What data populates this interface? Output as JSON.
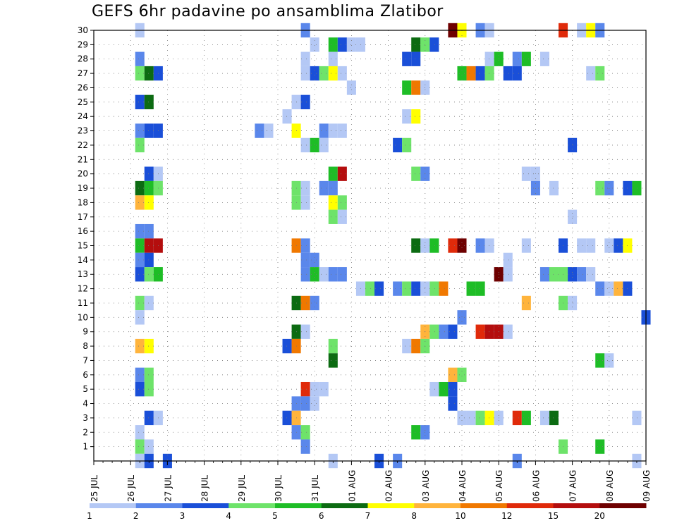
{
  "chart_data": {
    "type": "heatmap",
    "title": "GEFS 6hr padavine po ansamblima Zlatibor",
    "xlabel": "",
    "ylabel": "",
    "x_ticks": [
      "25 JUL",
      "26 JUL",
      "27 JUL",
      "28 JUL",
      "29 JUL",
      "30 JUL",
      "31 JUL",
      "01 AUG",
      "02 AUG",
      "03 AUG",
      "04 AUG",
      "05 AUG",
      "06 AUG",
      "07 AUG",
      "08 AUG",
      "09 AUG"
    ],
    "y_ticks": [
      1,
      2,
      3,
      4,
      5,
      6,
      7,
      8,
      9,
      10,
      11,
      12,
      13,
      14,
      15,
      16,
      17,
      18,
      19,
      20,
      21,
      22,
      23,
      24,
      25,
      26,
      27,
      28,
      29,
      30
    ],
    "x_unit": "6-hour step from 25 JUL",
    "x_range": [
      0,
      60
    ],
    "y_range": [
      0,
      30
    ],
    "grid": true,
    "legend": {
      "placement": "bottom",
      "labels": [
        "1",
        "2",
        "3",
        "4",
        "5",
        "6",
        "7",
        "8",
        "10",
        "12",
        "15",
        "20"
      ],
      "colors": [
        "#b4c8f5",
        "#5a87eb",
        "#1a4fd8",
        "#6ee36a",
        "#1ebd26",
        "#0c6b12",
        "#ffff00",
        "#ffb43c",
        "#f07800",
        "#e02a0a",
        "#b40e0e",
        "#6e0000"
      ]
    },
    "cells": [
      [
        5,
        30,
        0
      ],
      [
        23,
        30,
        1
      ],
      [
        39,
        30,
        11
      ],
      [
        40,
        30,
        6
      ],
      [
        42,
        30,
        1
      ],
      [
        43,
        30,
        0
      ],
      [
        51,
        30,
        9
      ],
      [
        53,
        30,
        0
      ],
      [
        54,
        30,
        6
      ],
      [
        55,
        30,
        1
      ],
      [
        24,
        29,
        0
      ],
      [
        26,
        29,
        4
      ],
      [
        27,
        29,
        2
      ],
      [
        28,
        29,
        0
      ],
      [
        29,
        29,
        0
      ],
      [
        35,
        29,
        5
      ],
      [
        36,
        29,
        3
      ],
      [
        37,
        29,
        2
      ],
      [
        5,
        28,
        1
      ],
      [
        23,
        28,
        0
      ],
      [
        26,
        28,
        0
      ],
      [
        34,
        28,
        2
      ],
      [
        35,
        28,
        2
      ],
      [
        43,
        28,
        0
      ],
      [
        44,
        28,
        4
      ],
      [
        46,
        28,
        1
      ],
      [
        47,
        28,
        4
      ],
      [
        49,
        28,
        0
      ],
      [
        5,
        27,
        3
      ],
      [
        6,
        27,
        5
      ],
      [
        7,
        27,
        2
      ],
      [
        23,
        27,
        0
      ],
      [
        24,
        27,
        2
      ],
      [
        25,
        27,
        3
      ],
      [
        26,
        27,
        6
      ],
      [
        27,
        27,
        0
      ],
      [
        40,
        27,
        4
      ],
      [
        41,
        27,
        8
      ],
      [
        42,
        27,
        2
      ],
      [
        43,
        27,
        3
      ],
      [
        45,
        27,
        2
      ],
      [
        46,
        27,
        2
      ],
      [
        54,
        27,
        0
      ],
      [
        55,
        27,
        3
      ],
      [
        28,
        26,
        0
      ],
      [
        34,
        26,
        4
      ],
      [
        35,
        26,
        8
      ],
      [
        36,
        26,
        0
      ],
      [
        5,
        25,
        2
      ],
      [
        6,
        25,
        5
      ],
      [
        22,
        25,
        0
      ],
      [
        23,
        25,
        2
      ],
      [
        21,
        24,
        0
      ],
      [
        34,
        24,
        0
      ],
      [
        35,
        24,
        6
      ],
      [
        5,
        23,
        1
      ],
      [
        6,
        23,
        2
      ],
      [
        7,
        23,
        2
      ],
      [
        18,
        23,
        1
      ],
      [
        19,
        23,
        0
      ],
      [
        22,
        23,
        6
      ],
      [
        25,
        23,
        1
      ],
      [
        26,
        23,
        0
      ],
      [
        27,
        23,
        0
      ],
      [
        5,
        22,
        3
      ],
      [
        23,
        22,
        0
      ],
      [
        24,
        22,
        4
      ],
      [
        25,
        22,
        0
      ],
      [
        33,
        22,
        2
      ],
      [
        34,
        22,
        3
      ],
      [
        52,
        22,
        2
      ],
      [
        6,
        20,
        2
      ],
      [
        7,
        20,
        0
      ],
      [
        26,
        20,
        4
      ],
      [
        27,
        20,
        10
      ],
      [
        35,
        20,
        3
      ],
      [
        36,
        20,
        1
      ],
      [
        47,
        20,
        0
      ],
      [
        48,
        20,
        0
      ],
      [
        5,
        19,
        5
      ],
      [
        6,
        19,
        4
      ],
      [
        7,
        19,
        3
      ],
      [
        22,
        19,
        3
      ],
      [
        23,
        19,
        0
      ],
      [
        25,
        19,
        1
      ],
      [
        26,
        19,
        1
      ],
      [
        48,
        19,
        1
      ],
      [
        50,
        19,
        0
      ],
      [
        55,
        19,
        3
      ],
      [
        56,
        19,
        1
      ],
      [
        58,
        19,
        2
      ],
      [
        59,
        19,
        4
      ],
      [
        5,
        18,
        7
      ],
      [
        6,
        18,
        6
      ],
      [
        22,
        18,
        3
      ],
      [
        23,
        18,
        0
      ],
      [
        26,
        18,
        6
      ],
      [
        27,
        18,
        3
      ],
      [
        26,
        17,
        3
      ],
      [
        27,
        17,
        0
      ],
      [
        52,
        17,
        0
      ],
      [
        5,
        16,
        1
      ],
      [
        6,
        16,
        1
      ],
      [
        5,
        15,
        4
      ],
      [
        6,
        15,
        10
      ],
      [
        7,
        15,
        10
      ],
      [
        22,
        15,
        8
      ],
      [
        23,
        15,
        1
      ],
      [
        35,
        15,
        5
      ],
      [
        36,
        15,
        0
      ],
      [
        37,
        15,
        4
      ],
      [
        39,
        15,
        9
      ],
      [
        40,
        15,
        11
      ],
      [
        42,
        15,
        1
      ],
      [
        43,
        15,
        0
      ],
      [
        47,
        15,
        0
      ],
      [
        51,
        15,
        2
      ],
      [
        53,
        15,
        0
      ],
      [
        54,
        15,
        0
      ],
      [
        56,
        15,
        0
      ],
      [
        57,
        15,
        2
      ],
      [
        58,
        15,
        6
      ],
      [
        5,
        14,
        1
      ],
      [
        6,
        14,
        2
      ],
      [
        23,
        14,
        1
      ],
      [
        24,
        14,
        1
      ],
      [
        45,
        14,
        0
      ],
      [
        5,
        13,
        2
      ],
      [
        6,
        13,
        3
      ],
      [
        7,
        13,
        4
      ],
      [
        23,
        13,
        1
      ],
      [
        24,
        13,
        4
      ],
      [
        25,
        13,
        0
      ],
      [
        26,
        13,
        1
      ],
      [
        27,
        13,
        1
      ],
      [
        44,
        13,
        11
      ],
      [
        45,
        13,
        0
      ],
      [
        49,
        13,
        1
      ],
      [
        50,
        13,
        3
      ],
      [
        51,
        13,
        3
      ],
      [
        52,
        13,
        2
      ],
      [
        53,
        13,
        1
      ],
      [
        54,
        13,
        0
      ],
      [
        29,
        12,
        0
      ],
      [
        30,
        12,
        3
      ],
      [
        31,
        12,
        2
      ],
      [
        33,
        12,
        1
      ],
      [
        34,
        12,
        3
      ],
      [
        35,
        12,
        2
      ],
      [
        36,
        12,
        0
      ],
      [
        37,
        12,
        3
      ],
      [
        38,
        12,
        8
      ],
      [
        41,
        12,
        4
      ],
      [
        42,
        12,
        4
      ],
      [
        55,
        12,
        1
      ],
      [
        56,
        12,
        0
      ],
      [
        57,
        12,
        7
      ],
      [
        58,
        12,
        2
      ],
      [
        5,
        11,
        3
      ],
      [
        6,
        11,
        0
      ],
      [
        22,
        11,
        5
      ],
      [
        23,
        11,
        8
      ],
      [
        24,
        11,
        1
      ],
      [
        47,
        11,
        7
      ],
      [
        51,
        11,
        3
      ],
      [
        52,
        11,
        0
      ],
      [
        5,
        10,
        0
      ],
      [
        40,
        10,
        1
      ],
      [
        60,
        10,
        2
      ],
      [
        22,
        9,
        5
      ],
      [
        23,
        9,
        0
      ],
      [
        36,
        9,
        7
      ],
      [
        37,
        9,
        3
      ],
      [
        38,
        9,
        1
      ],
      [
        39,
        9,
        2
      ],
      [
        42,
        9,
        9
      ],
      [
        43,
        9,
        10
      ],
      [
        44,
        9,
        10
      ],
      [
        45,
        9,
        0
      ],
      [
        5,
        8,
        7
      ],
      [
        6,
        8,
        6
      ],
      [
        21,
        8,
        2
      ],
      [
        22,
        8,
        8
      ],
      [
        26,
        8,
        3
      ],
      [
        34,
        8,
        0
      ],
      [
        35,
        8,
        8
      ],
      [
        36,
        8,
        3
      ],
      [
        26,
        7,
        5
      ],
      [
        55,
        7,
        4
      ],
      [
        56,
        7,
        0
      ],
      [
        5,
        6,
        1
      ],
      [
        6,
        6,
        3
      ],
      [
        39,
        6,
        7
      ],
      [
        40,
        6,
        3
      ],
      [
        5,
        5,
        2
      ],
      [
        6,
        5,
        3
      ],
      [
        23,
        5,
        9
      ],
      [
        24,
        5,
        0
      ],
      [
        25,
        5,
        0
      ],
      [
        37,
        5,
        0
      ],
      [
        38,
        5,
        4
      ],
      [
        39,
        5,
        2
      ],
      [
        22,
        4,
        1
      ],
      [
        23,
        4,
        1
      ],
      [
        24,
        4,
        0
      ],
      [
        39,
        4,
        2
      ],
      [
        6,
        3,
        2
      ],
      [
        7,
        3,
        0
      ],
      [
        21,
        3,
        2
      ],
      [
        22,
        3,
        7
      ],
      [
        40,
        3,
        0
      ],
      [
        41,
        3,
        0
      ],
      [
        42,
        3,
        3
      ],
      [
        43,
        3,
        6
      ],
      [
        44,
        3,
        0
      ],
      [
        46,
        3,
        9
      ],
      [
        47,
        3,
        4
      ],
      [
        49,
        3,
        0
      ],
      [
        50,
        3,
        5
      ],
      [
        59,
        3,
        0
      ],
      [
        5,
        2,
        0
      ],
      [
        22,
        2,
        1
      ],
      [
        23,
        2,
        3
      ],
      [
        35,
        2,
        4
      ],
      [
        36,
        2,
        1
      ],
      [
        5,
        1,
        3
      ],
      [
        6,
        1,
        0
      ],
      [
        23,
        1,
        1
      ],
      [
        51,
        1,
        3
      ],
      [
        55,
        1,
        4
      ],
      [
        5,
        0,
        0
      ],
      [
        6,
        0,
        2
      ],
      [
        8,
        0,
        2
      ],
      [
        26,
        0,
        0
      ],
      [
        31,
        0,
        2
      ],
      [
        33,
        0,
        1
      ],
      [
        46,
        0,
        1
      ],
      [
        59,
        0,
        0
      ]
    ]
  }
}
